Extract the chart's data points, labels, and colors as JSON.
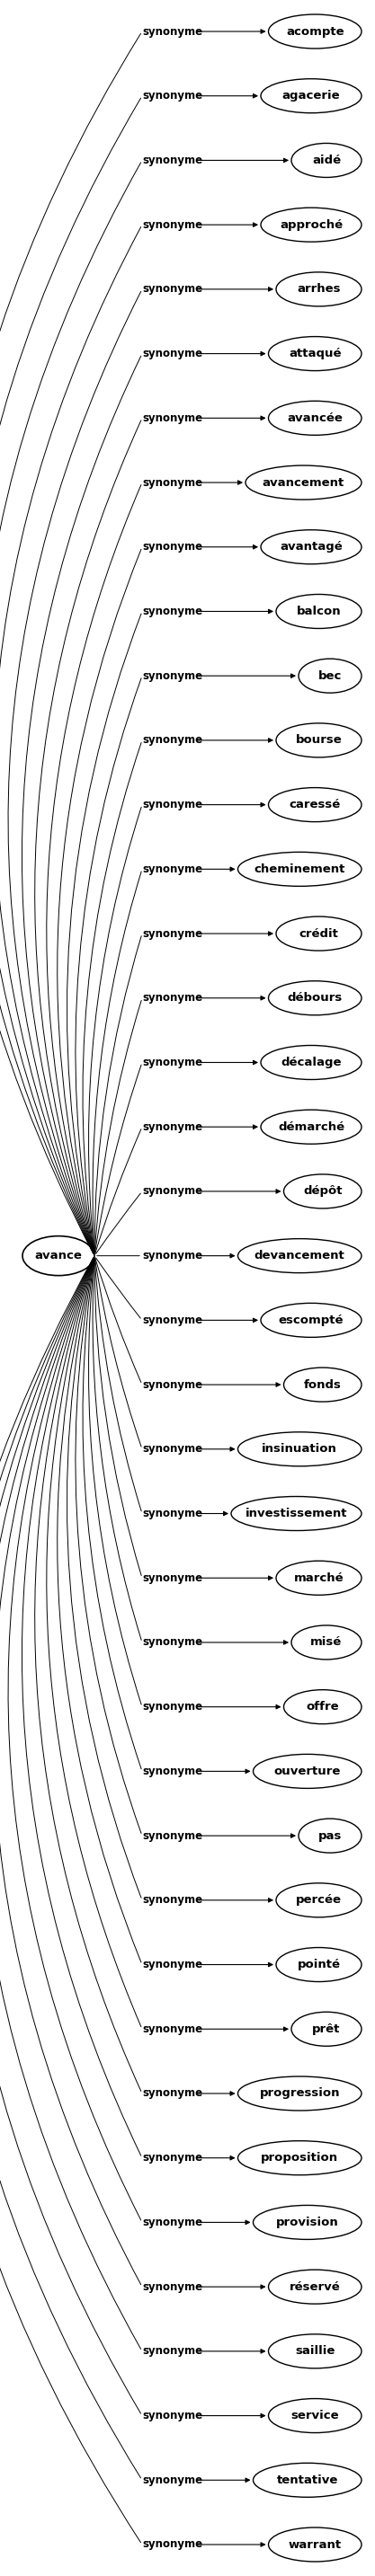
{
  "center_word": "avance",
  "synonyms": [
    "acompte",
    "agacerie",
    "aidé",
    "approché",
    "arrhes",
    "attaqué",
    "avancée",
    "avancement",
    "avantagé",
    "balcon",
    "bec",
    "bourse",
    "caressé",
    "cheminement",
    "crédit",
    "débours",
    "décalage",
    "démarché",
    "dépôt",
    "devancement",
    "escompté",
    "fonds",
    "insinuation",
    "investissement",
    "marché",
    "misé",
    "offre",
    "ouverture",
    "pas",
    "percée",
    "pointé",
    "prêt",
    "progression",
    "proposition",
    "provision",
    "réservé",
    "saillie",
    "service",
    "tentative",
    "warrant"
  ],
  "edge_label": "synonyme",
  "bg_color": "#ffffff",
  "node_edge_color": "#000000",
  "text_color": "#000000",
  "arrow_color": "#000000"
}
